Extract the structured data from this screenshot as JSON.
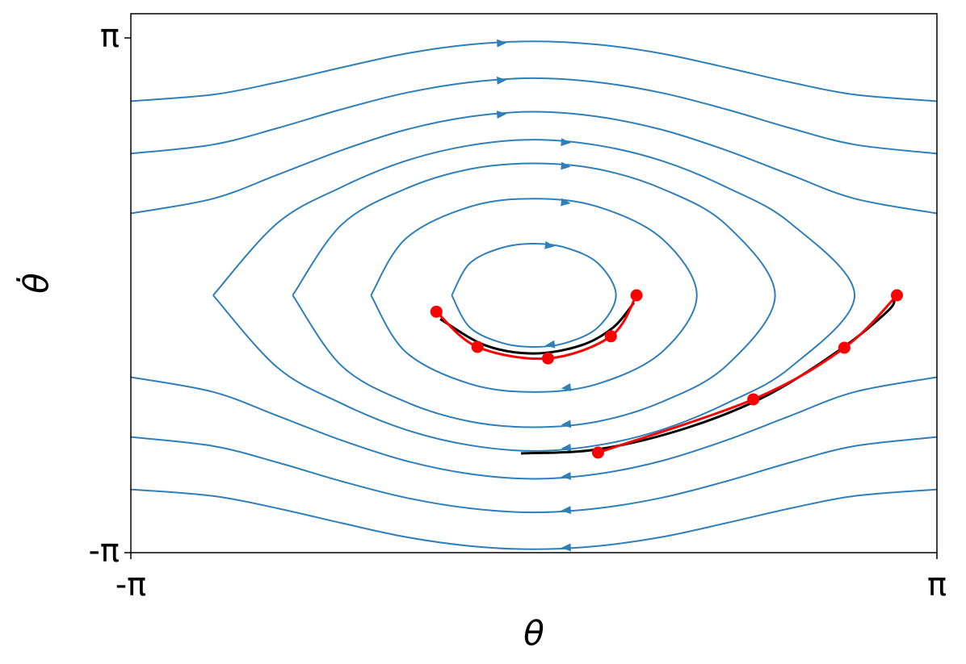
{
  "chart_data": {
    "type": "stream",
    "xlabel": "θ",
    "ylabel": "θ̇",
    "xlim": [
      -3.14159,
      3.14159
    ],
    "ylim": [
      -3.14159,
      3.4372
    ],
    "xticks": [
      {
        "value": -3.14159,
        "label": "-π"
      },
      {
        "value": 3.14159,
        "label": "π"
      }
    ],
    "yticks": [
      {
        "value": -3.14159,
        "label": "-π"
      },
      {
        "value": 3.14159,
        "label": "π"
      }
    ],
    "stream_color": "#2f7fb8",
    "streamlines": [
      {
        "x": [
          -0.64,
          -0.5,
          -0.25,
          0,
          0.25,
          0.5,
          0.64,
          0.5,
          0.25,
          0,
          -0.25,
          -0.5,
          -0.64
        ],
        "y": [
          0,
          0.39,
          0.58,
          0.63,
          0.58,
          0.39,
          0,
          -0.39,
          -0.58,
          -0.63,
          -0.58,
          -0.39,
          0
        ]
      },
      {
        "x": [
          -1.27,
          -1,
          -0.5,
          0,
          0.5,
          1,
          1.27,
          1,
          0.5,
          0,
          -0.5,
          -1,
          -1.27
        ],
        "y": [
          0,
          0.69,
          1.08,
          1.18,
          1.08,
          0.69,
          0,
          -0.69,
          -1.08,
          -1.18,
          -1.08,
          -0.69,
          0
        ]
      },
      {
        "x": [
          -1.88,
          -1.5,
          -1,
          -0.5,
          0,
          0.5,
          1,
          1.5,
          1.88,
          1.5,
          1,
          0.5,
          0,
          -0.5,
          -1,
          -1.5,
          -1.88
        ],
        "y": [
          0,
          0.86,
          1.3,
          1.54,
          1.61,
          1.54,
          1.3,
          0.86,
          0,
          -0.86,
          -1.3,
          -1.54,
          -1.61,
          -1.54,
          -1.3,
          -0.86,
          0
        ]
      },
      {
        "x": [
          -2.5,
          -2,
          -1.5,
          -1,
          -0.5,
          0,
          0.5,
          1,
          1.5,
          2,
          2.5,
          2,
          1.5,
          1,
          0.5,
          0,
          -0.5,
          -1,
          -1.5,
          -2,
          -2.5
        ],
        "y": [
          0,
          0.88,
          1.32,
          1.64,
          1.83,
          1.9,
          1.83,
          1.64,
          1.32,
          0.88,
          0,
          -0.88,
          -1.32,
          -1.64,
          -1.83,
          -1.9,
          -1.83,
          -1.64,
          -1.32,
          -0.88,
          0
        ]
      },
      {
        "x": [
          -3.14,
          -2.5,
          -2,
          -1.5,
          -1,
          -0.5,
          0,
          0.5,
          1,
          1.5,
          2,
          2.5,
          3.14
        ],
        "y": [
          1.0,
          1.18,
          1.47,
          1.77,
          2.02,
          2.18,
          2.24,
          2.18,
          2.02,
          1.77,
          1.47,
          1.18,
          1.0
        ]
      },
      {
        "x": [
          -3.14,
          -2.5,
          -2,
          -1.5,
          -1,
          -0.5,
          0,
          0.5,
          1,
          1.5,
          2,
          2.5,
          3.14
        ],
        "y": [
          1.73,
          1.84,
          2.04,
          2.27,
          2.47,
          2.6,
          2.65,
          2.6,
          2.47,
          2.27,
          2.04,
          1.84,
          1.73
        ]
      },
      {
        "x": [
          -3.14,
          -2.5,
          -2,
          -1.5,
          -1,
          -0.5,
          0,
          0.5,
          1,
          1.5,
          2,
          2.5,
          3.14
        ],
        "y": [
          2.37,
          2.45,
          2.6,
          2.78,
          2.95,
          3.06,
          3.1,
          3.06,
          2.95,
          2.78,
          2.6,
          2.45,
          2.37
        ]
      },
      {
        "x": [
          3.14,
          2.5,
          2,
          1.5,
          1,
          0.5,
          0,
          -0.5,
          -1,
          -1.5,
          -2,
          -2.5,
          -3.14
        ],
        "y": [
          -1.0,
          -1.18,
          -1.47,
          -1.77,
          -2.02,
          -2.18,
          -2.24,
          -2.18,
          -2.02,
          -1.77,
          -1.47,
          -1.18,
          -1.0
        ]
      },
      {
        "x": [
          3.14,
          2.5,
          2,
          1.5,
          1,
          0.5,
          0,
          -0.5,
          -1,
          -1.5,
          -2,
          -2.5,
          -3.14
        ],
        "y": [
          -1.73,
          -1.84,
          -2.04,
          -2.27,
          -2.47,
          -2.6,
          -2.65,
          -2.6,
          -2.47,
          -2.27,
          -2.04,
          -1.84,
          -1.73
        ]
      },
      {
        "x": [
          3.14,
          2.5,
          2,
          1.5,
          1,
          0.5,
          0,
          -0.5,
          -1,
          -1.5,
          -2,
          -2.5,
          -3.14
        ],
        "y": [
          -2.37,
          -2.45,
          -2.6,
          -2.78,
          -2.95,
          -3.06,
          -3.1,
          -3.06,
          -2.95,
          -2.78,
          -2.6,
          -2.45,
          -2.37
        ]
      }
    ],
    "series": [
      {
        "color": "#000000",
        "x": [
          -0.73,
          -0.38,
          0.0,
          0.37,
          0.62,
          0.78
        ],
        "y": [
          -0.29,
          -0.61,
          -0.71,
          -0.61,
          -0.39,
          -0.09
        ]
      },
      {
        "color": "#000000",
        "x": [
          -0.1,
          0.5,
          1.19,
          1.82,
          2.39,
          2.76,
          2.81
        ],
        "y": [
          -1.93,
          -1.88,
          -1.62,
          -1.22,
          -0.66,
          -0.19,
          -0.04
        ]
      },
      {
        "color": "#ff0000",
        "markers": true,
        "x": [
          -0.76,
          -0.44,
          0.11,
          0.6,
          0.8
        ],
        "y": [
          -0.2,
          -0.63,
          -0.77,
          -0.5,
          0.0
        ]
      },
      {
        "color": "#ff0000",
        "markers": true,
        "x": [
          0.5,
          1.71,
          2.42,
          2.83
        ],
        "y": [
          -1.92,
          -1.27,
          -0.64,
          0.0
        ]
      }
    ]
  }
}
